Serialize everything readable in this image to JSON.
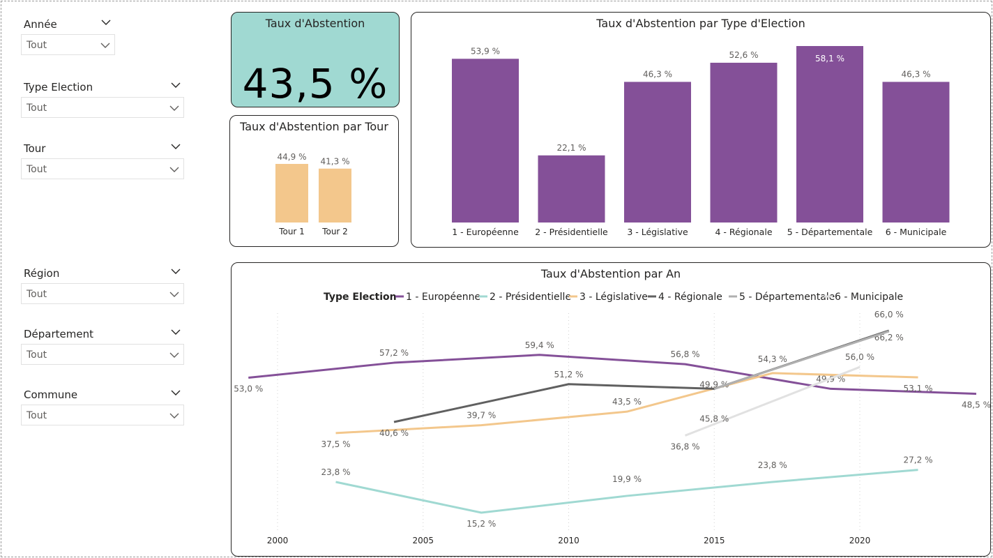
{
  "slicers": [
    {
      "title": "Année",
      "value": "Tout"
    },
    {
      "title": "Type Election",
      "value": "Tout"
    },
    {
      "title": "Tour",
      "value": "Tout"
    },
    {
      "title": "Région",
      "value": "Tout"
    },
    {
      "title": "Département",
      "value": "Tout"
    },
    {
      "title": "Commune",
      "value": "Tout"
    }
  ],
  "kpi": {
    "title": "Taux d'Abstention",
    "value": "43,5 %"
  },
  "colors": {
    "purple": "#845098",
    "teal": "#a0d9d2",
    "orange": "#f3c78c",
    "darkgray": "#606060",
    "gray": "#b0b0b0",
    "lightgray": "#e1e1e1"
  },
  "chart_data": [
    {
      "type": "bar",
      "title": "Taux d'Abstention par Tour",
      "categories": [
        "Tour 1",
        "Tour 2"
      ],
      "values": [
        44.9,
        41.3
      ],
      "labels": [
        "44,9 %",
        "41,3 %"
      ]
    },
    {
      "type": "bar",
      "title": "Taux d'Abstention par Type d'Election",
      "categories": [
        "1 - Européenne",
        "2 - Présidentielle",
        "3 - Législative",
        "4 - Régionale",
        "5 - Départementale",
        "6 - Municipale"
      ],
      "values": [
        53.9,
        22.1,
        46.3,
        52.6,
        58.1,
        46.3
      ],
      "labels": [
        "53,9 %",
        "22,1 %",
        "46,3 %",
        "52,6 %",
        "58,1 %",
        "46,3 %"
      ]
    },
    {
      "type": "line",
      "title": "Taux d'Abstention par An",
      "legend_title": "Type Election",
      "x_ticks": [
        2000,
        2005,
        2010,
        2015,
        2020
      ],
      "grid": "vertical dotted",
      "series": [
        {
          "name": "1 - Européenne",
          "points": [
            [
              1999,
              53.0
            ],
            [
              2004,
              57.2
            ],
            [
              2009,
              59.4
            ],
            [
              2014,
              56.8
            ],
            [
              2019,
              49.9
            ],
            [
              2024,
              48.5
            ]
          ],
          "labels": [
            "53,0 %",
            "57,2 %",
            "59,4 %",
            "56,8 %",
            "49,9 %",
            "48,5 %"
          ]
        },
        {
          "name": "2 - Présidentielle",
          "points": [
            [
              2002,
              23.8
            ],
            [
              2007,
              15.2
            ],
            [
              2012,
              19.9
            ],
            [
              2017,
              23.8
            ],
            [
              2022,
              27.2
            ]
          ],
          "labels": [
            "23,8 %",
            "15,2 %",
            "19,9 %",
            "23,8 %",
            "27,2 %"
          ]
        },
        {
          "name": "3 - Législative",
          "points": [
            [
              2002,
              37.5
            ],
            [
              2007,
              39.7
            ],
            [
              2012,
              43.5
            ],
            [
              2017,
              54.3
            ],
            [
              2022,
              53.1
            ]
          ],
          "labels": [
            "37,5 %",
            "39,7 %",
            "43,5 %",
            "54,3 %",
            "53,1 %"
          ]
        },
        {
          "name": "4 - Régionale",
          "points": [
            [
              2004,
              40.6
            ],
            [
              2010,
              51.2
            ],
            [
              2015,
              49.9
            ],
            [
              2021,
              66.2
            ]
          ],
          "labels": [
            "40,6 %",
            "51,2 %",
            "49,9 %",
            "66,2 %"
          ]
        },
        {
          "name": "5 - Départementale",
          "points": [
            [
              2015,
              49.9
            ],
            [
              2021,
              66.0
            ]
          ],
          "labels": [
            "",
            "66,0 %"
          ]
        },
        {
          "name": "6 - Municipale",
          "points": [
            [
              2014,
              36.8
            ],
            [
              2020,
              56.0
            ]
          ],
          "labels": [
            "36,8 %",
            "56,0 %"
          ]
        }
      ],
      "extra_labels": [
        "45,8 %"
      ]
    }
  ]
}
